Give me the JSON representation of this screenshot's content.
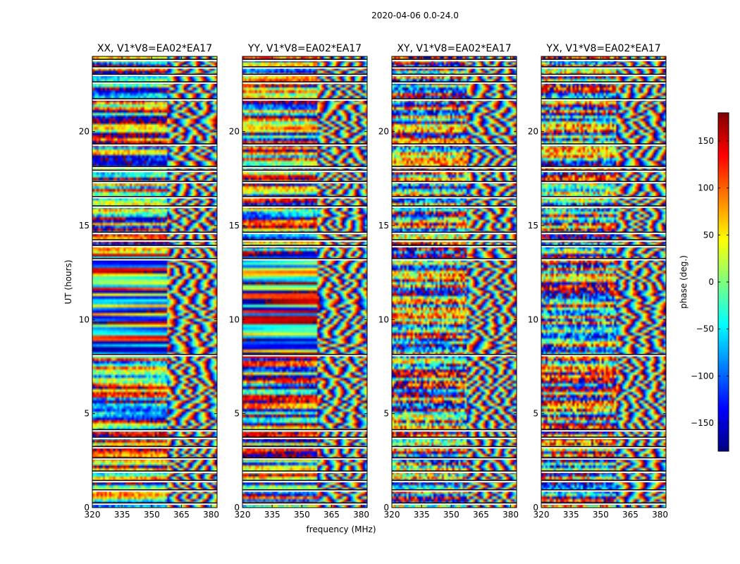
{
  "chart_data": {
    "type": "heatmap",
    "suptitle": "2020-04-06 0.0-24.0",
    "xlabel": "frequency (MHz)",
    "ylabel": "UT (hours)",
    "xlim": [
      320,
      383
    ],
    "ylim": [
      0,
      24
    ],
    "xticks": [
      320,
      335,
      350,
      365,
      380
    ],
    "yticks": [
      0,
      5,
      10,
      15,
      20
    ],
    "colorbar": {
      "label": "phase (deg.)",
      "range": [
        -180,
        180
      ],
      "ticks": [
        150,
        100,
        50,
        0,
        -50,
        -100,
        -150
      ],
      "tick_labels": [
        "150",
        "100",
        "50",
        "0",
        "−50",
        "−100",
        "−150"
      ],
      "colormap": [
        "#00007f",
        "#0000ff",
        "#007fff",
        "#00ffff",
        "#7fff7f",
        "#ffff00",
        "#ff7f00",
        "#ff0000",
        "#7f0000"
      ]
    },
    "panels": [
      {
        "title": "XX, V1*V8=EA02*EA17",
        "pol": "XX"
      },
      {
        "title": "YY, V1*V8=EA02*EA17",
        "pol": "YY"
      },
      {
        "title": "XY, V1*V8=EA02*EA17",
        "pol": "XY"
      },
      {
        "title": "YX, V1*V8=EA02*EA17",
        "pol": "YX"
      }
    ],
    "flagged_hours": [
      0.2,
      0.9,
      1.4,
      1.9,
      2.6,
      3.2,
      3.7,
      4.1,
      8.1,
      13.2,
      13.9,
      14.2,
      14.6,
      16.0,
      16.5,
      17.3,
      17.9,
      18.1,
      19.3,
      21.7,
      22.6,
      23.0,
      23.4,
      23.8
    ]
  }
}
